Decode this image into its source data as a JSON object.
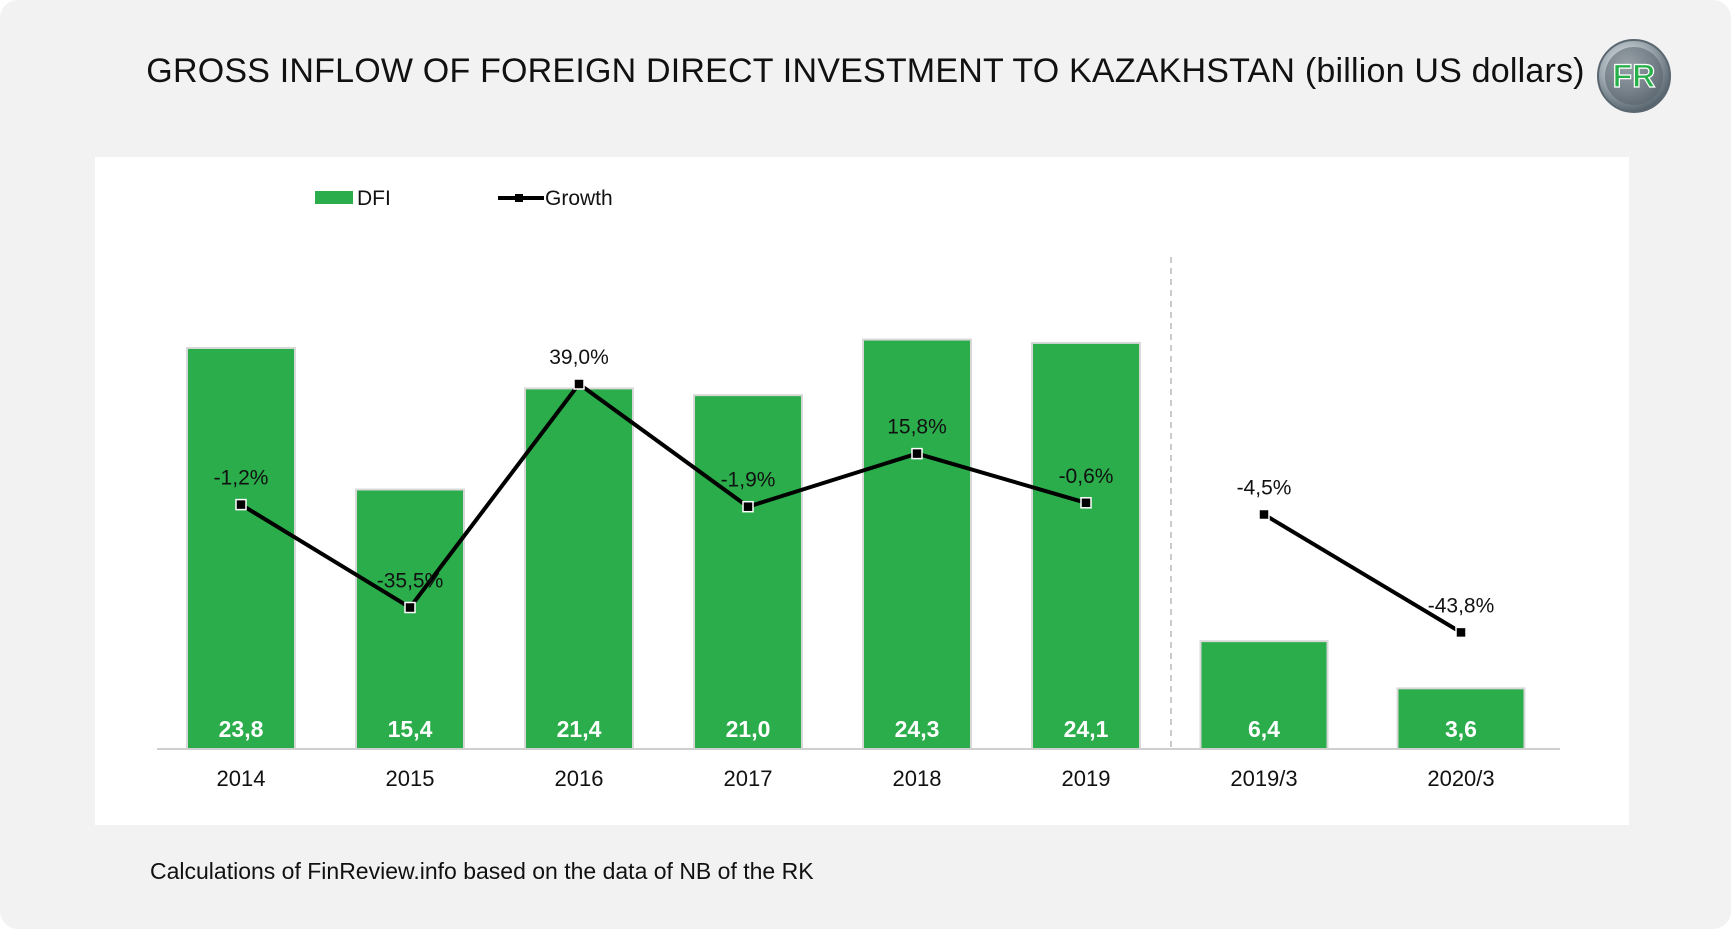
{
  "header": {
    "title": "GROSS INFLOW OF FOREIGN DIRECT INVESTMENT TO KAZAKHSTAN (billion US dollars)",
    "logo_text": "FR"
  },
  "footer": {
    "source": "Calculations of FinReview.info based on the data of NB of the RK"
  },
  "colors": {
    "bar": "#2aad4a",
    "line": "#000000",
    "background": "#f2f2f2",
    "panel": "#ffffff"
  },
  "chart_data": {
    "type": "bar",
    "categories": [
      "2014",
      "2015",
      "2016",
      "2017",
      "2018",
      "2019",
      "2019/3",
      "2020/3"
    ],
    "series": [
      {
        "name": "DFI",
        "type": "bar",
        "values": [
          23.8,
          15.4,
          21.4,
          21.0,
          24.3,
          24.1,
          6.4,
          3.6
        ],
        "labels": [
          "23,8",
          "15,4",
          "21,4",
          "21,0",
          "24,3",
          "24,1",
          "6,4",
          "3,6"
        ]
      },
      {
        "name": "Growth",
        "type": "line",
        "values": [
          -1.2,
          -35.5,
          39.0,
          -1.9,
          15.8,
          -0.6,
          -4.5,
          -43.8
        ],
        "labels": [
          "-1,2%",
          "-35,5%",
          "39,0%",
          "-1,9%",
          "15,8%",
          "-0,6%",
          "-4,5%",
          "-43,8%"
        ]
      }
    ],
    "legend": "top-left",
    "ylim_bars": [
      0,
      30
    ],
    "ylim_growth": [
      -45,
      45
    ],
    "separator_after": "2019",
    "grid": false
  }
}
